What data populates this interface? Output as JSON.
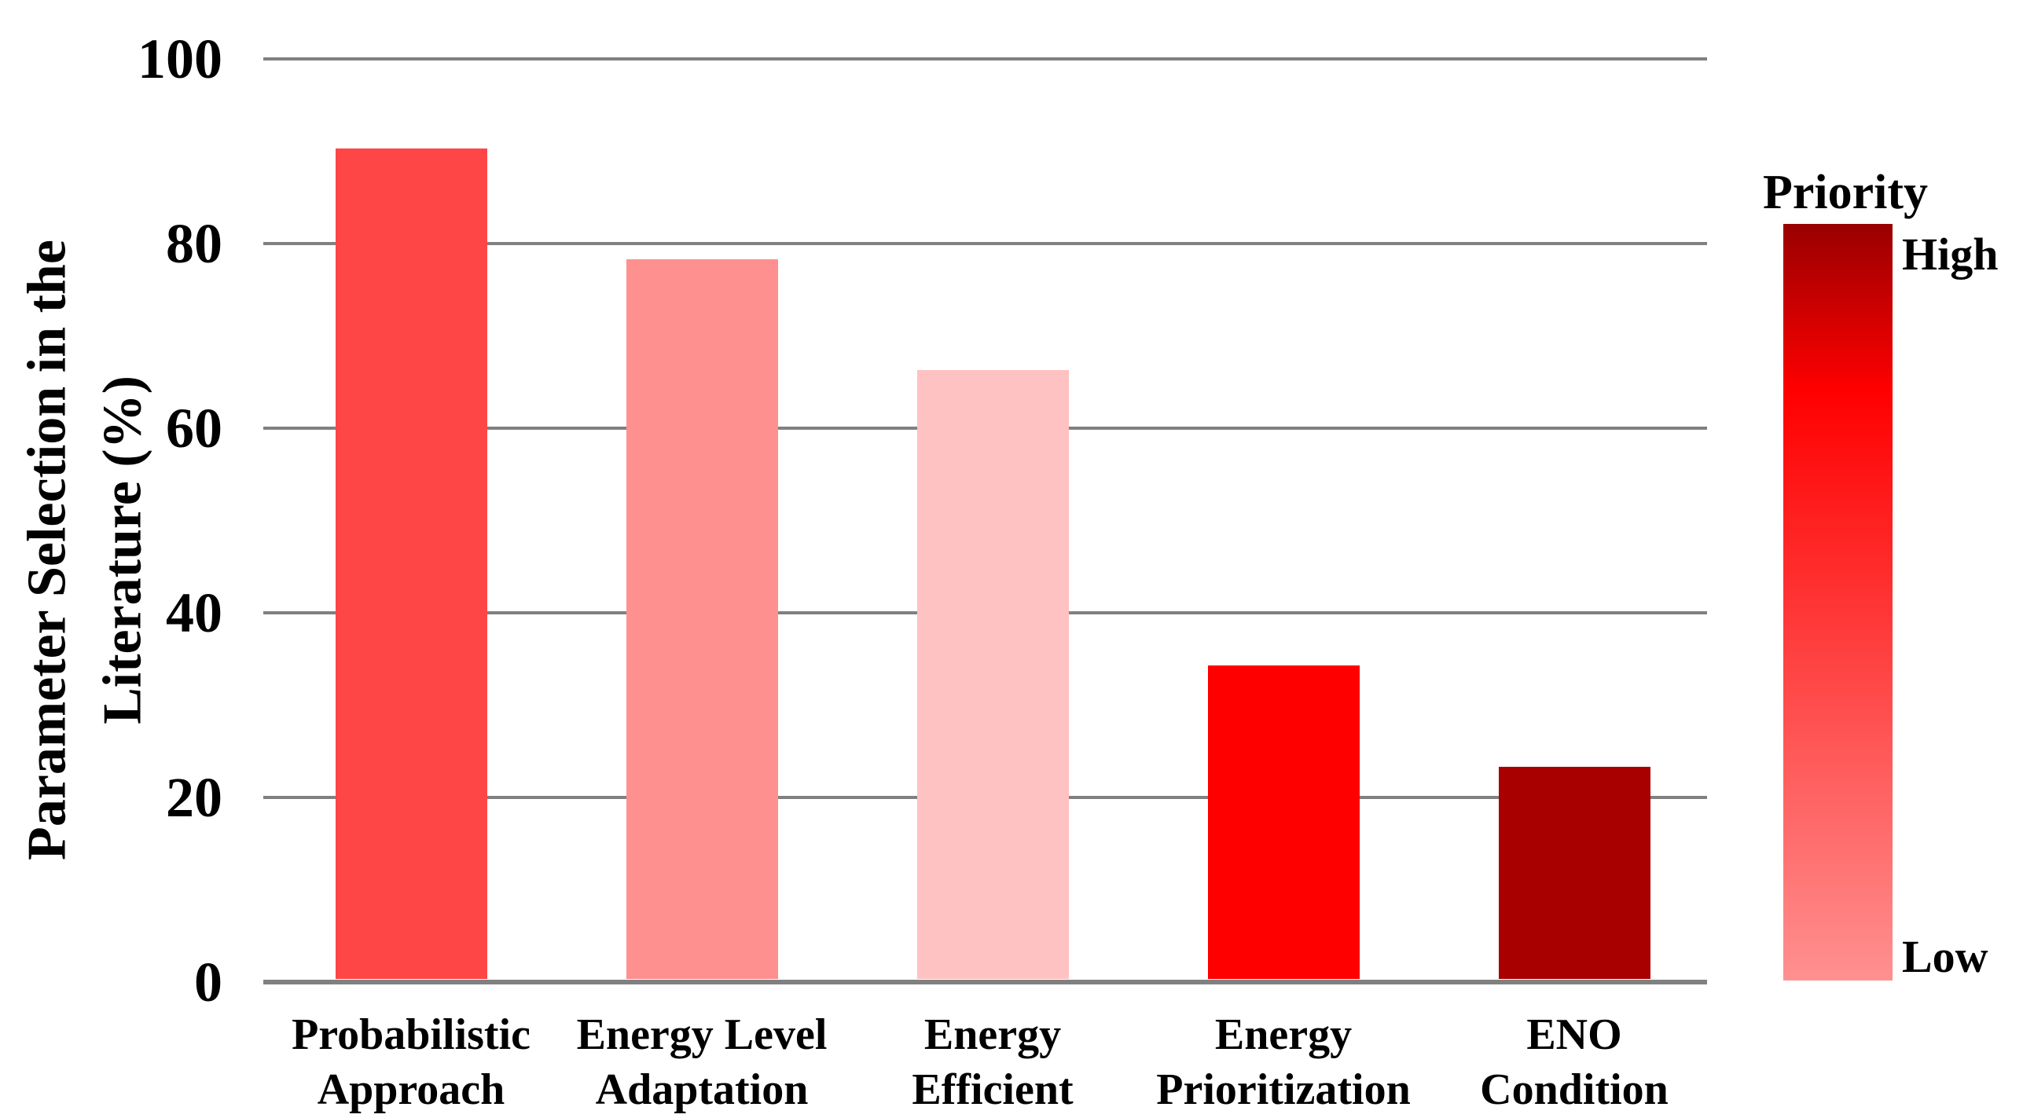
{
  "chart_data": {
    "type": "bar",
    "title": "",
    "categories": [
      "Probabilistic\nApproach",
      "Energy Level\nAdaptation",
      "Energy\nEfficient",
      "Energy\nPrioritization",
      "ENO\nCondition"
    ],
    "values": [
      90,
      78,
      66,
      34,
      23
    ],
    "bar_colors": [
      "#fe4646",
      "#ff9090",
      "#ffc2c2",
      "#ff0000",
      "#a80000"
    ],
    "ylabel": "Parameter Selection in the Literature (%)",
    "ylabel_lines": [
      "Parameter Selection in the",
      "Literature (%)"
    ],
    "xlabel": "",
    "yticks": [
      0,
      20,
      40,
      60,
      80,
      100
    ],
    "ytick_labels": [
      "0",
      "20",
      "40",
      "60",
      "80",
      "100"
    ],
    "ylim": [
      0,
      100
    ],
    "grid": true,
    "gridline_color": "#808080",
    "axis_line_color": "#808080",
    "background_color": "#ffffff",
    "legend": {
      "position": "right",
      "title": "Priority",
      "high_label": "High",
      "low_label": "Low",
      "gradient_top_color": "#990000",
      "gradient_mid_color": "#ff0000",
      "gradient_bottom_color": "#ff9090"
    }
  }
}
